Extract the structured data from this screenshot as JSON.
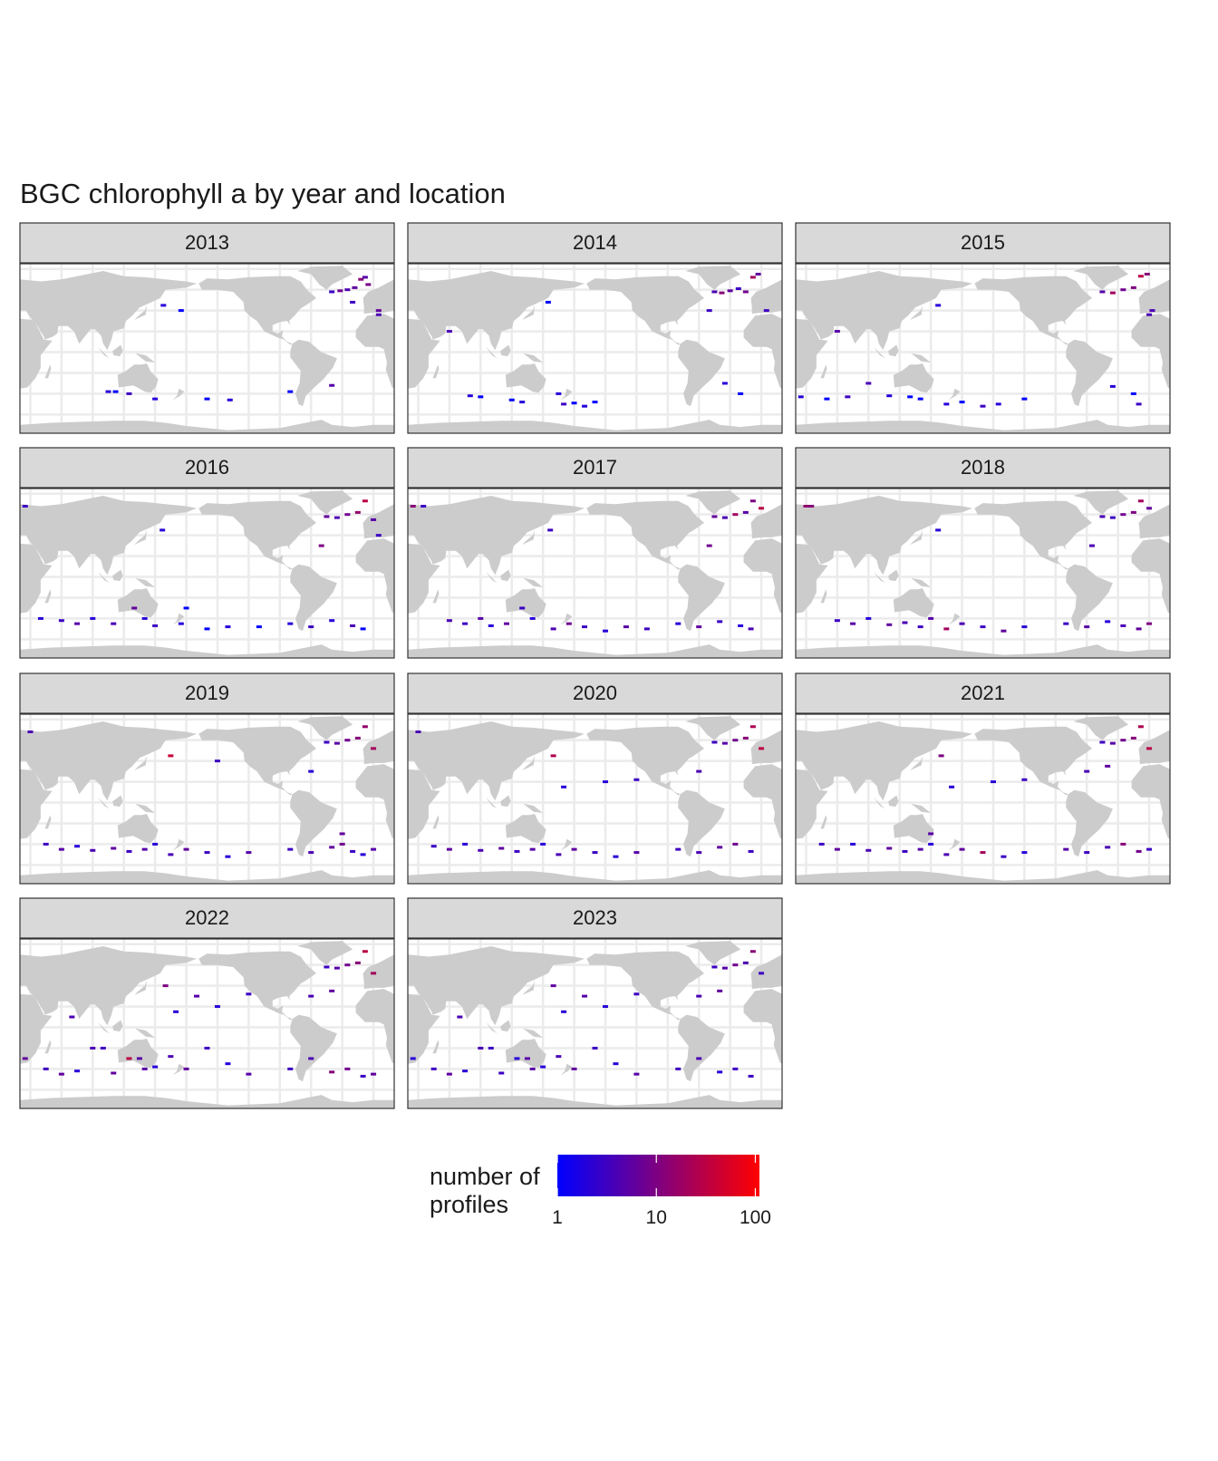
{
  "chart_data": {
    "type": "map",
    "title": "BGC chlorophyll a by year and location",
    "land_color": "#cccccc",
    "grid": true,
    "facets": [
      {
        "label": "2013",
        "lon": [
          -40,
          -32,
          -25,
          -18,
          -12,
          -8,
          -20,
          5,
          5,
          105,
          112,
          125,
          150,
          200,
          222,
          -40,
          -80,
          158,
          175,
          -5
        ],
        "lat": [
          58,
          59,
          60,
          62,
          70,
          72,
          48,
          40,
          36,
          -38,
          -38,
          -40,
          -45,
          -45,
          -46,
          -32,
          -38,
          45,
          40,
          65
        ],
        "values": [
          3,
          8,
          4,
          6,
          12,
          5,
          3,
          6,
          4,
          2,
          1,
          3,
          2,
          1,
          2,
          5,
          1,
          2,
          1,
          9
        ]
      },
      {
        "label": "2014",
        "lon": [
          -45,
          -38,
          -30,
          -22,
          -15,
          -8,
          -3,
          5,
          80,
          90,
          120,
          130,
          165,
          170,
          180,
          190,
          200,
          -35,
          -20,
          -50,
          60,
          155
        ],
        "lat": [
          58,
          57,
          59,
          61,
          58,
          72,
          75,
          40,
          -42,
          -43,
          -46,
          -48,
          -40,
          -50,
          -49,
          -52,
          -48,
          -30,
          -40,
          40,
          20,
          48
        ],
        "values": [
          4,
          12,
          6,
          3,
          8,
          20,
          6,
          3,
          2,
          1,
          1,
          2,
          2,
          3,
          1,
          2,
          1,
          2,
          1,
          3,
          4,
          1
        ]
      },
      {
        "label": "2015",
        "lon": [
          -45,
          -35,
          -25,
          -15,
          -8,
          -2,
          3,
          25,
          50,
          70,
          90,
          110,
          130,
          140,
          165,
          180,
          200,
          215,
          240,
          -35,
          -15,
          -10,
          157,
          60,
          0
        ],
        "lat": [
          58,
          57,
          60,
          62,
          73,
          75,
          40,
          -43,
          -45,
          -43,
          -30,
          -42,
          -43,
          -45,
          -50,
          -48,
          -52,
          -50,
          -45,
          -33,
          -40,
          -50,
          45,
          20,
          36
        ],
        "values": [
          5,
          20,
          8,
          10,
          30,
          12,
          4,
          2,
          1,
          3,
          4,
          2,
          1,
          1,
          2,
          1,
          3,
          2,
          1,
          2,
          1,
          3,
          2,
          5,
          4
        ]
      },
      {
        "label": "2016",
        "lon": [
          -45,
          -35,
          -25,
          -15,
          -8,
          0,
          25,
          40,
          60,
          75,
          90,
          110,
          130,
          140,
          150,
          175,
          200,
          220,
          250,
          -80,
          -60,
          -40,
          -20,
          -10,
          157,
          180,
          5,
          -50
        ],
        "lat": [
          58,
          57,
          60,
          62,
          73,
          55,
          68,
          -40,
          -42,
          -45,
          -40,
          -45,
          -30,
          -40,
          -47,
          -45,
          -50,
          -48,
          -48,
          -45,
          -48,
          -42,
          -47,
          -50,
          45,
          -30,
          40,
          30
        ],
        "values": [
          6,
          4,
          8,
          15,
          30,
          5,
          3,
          2,
          3,
          5,
          2,
          4,
          6,
          2,
          3,
          2,
          1,
          2,
          1,
          2,
          3,
          2,
          4,
          1,
          2,
          1,
          3,
          10
        ]
      },
      {
        "label": "2017",
        "lon": [
          -45,
          -35,
          -25,
          -15,
          -8,
          0,
          35,
          60,
          75,
          90,
          100,
          115,
          130,
          140,
          160,
          175,
          190,
          210,
          230,
          250,
          -80,
          -60,
          -40,
          -20,
          -10,
          157,
          25,
          -50
        ],
        "lat": [
          58,
          57,
          60,
          62,
          73,
          66,
          68,
          -42,
          -45,
          -40,
          -47,
          -45,
          -30,
          -40,
          -50,
          -45,
          -48,
          -52,
          -48,
          -50,
          -45,
          -48,
          -43,
          -47,
          -50,
          45,
          68,
          30
        ],
        "values": [
          6,
          4,
          20,
          5,
          10,
          30,
          3,
          4,
          3,
          5,
          2,
          6,
          3,
          2,
          4,
          8,
          3,
          2,
          5,
          3,
          2,
          6,
          3,
          2,
          4,
          3,
          12,
          8
        ]
      },
      {
        "label": "2018",
        "lon": [
          -45,
          -35,
          -25,
          -15,
          -8,
          0,
          30,
          60,
          75,
          90,
          110,
          125,
          140,
          150,
          165,
          180,
          200,
          220,
          240,
          -80,
          -60,
          -40,
          -25,
          -10,
          0,
          157,
          35,
          -55
        ],
        "lat": [
          58,
          57,
          60,
          62,
          73,
          66,
          68,
          -42,
          -45,
          -40,
          -46,
          -44,
          -48,
          -40,
          -50,
          -45,
          -48,
          -52,
          -48,
          -45,
          -48,
          -43,
          -47,
          -50,
          -45,
          45,
          68,
          30
        ],
        "values": [
          4,
          3,
          8,
          10,
          20,
          6,
          15,
          3,
          5,
          2,
          6,
          4,
          3,
          5,
          20,
          4,
          3,
          6,
          2,
          3,
          5,
          2,
          4,
          6,
          10,
          2,
          12,
          4
        ]
      },
      {
        "label": "2019",
        "lon": [
          -45,
          -35,
          -25,
          -15,
          -8,
          0,
          30,
          45,
          60,
          75,
          90,
          110,
          125,
          140,
          150,
          165,
          180,
          200,
          220,
          240,
          -80,
          -60,
          -40,
          -30,
          -20,
          -10,
          0,
          165,
          -150,
          -60,
          -30
        ],
        "lat": [
          58,
          57,
          60,
          62,
          73,
          52,
          68,
          -40,
          -45,
          -42,
          -46,
          -44,
          -47,
          -45,
          -40,
          -50,
          -45,
          -48,
          -52,
          -48,
          -45,
          -48,
          -43,
          -40,
          -47,
          -50,
          -45,
          45,
          40,
          30,
          -30
        ],
        "values": [
          3,
          5,
          8,
          12,
          15,
          20,
          4,
          3,
          5,
          2,
          4,
          6,
          3,
          5,
          2,
          4,
          6,
          3,
          2,
          5,
          3,
          4,
          6,
          8,
          3,
          2,
          5,
          40,
          3,
          2,
          6
        ]
      },
      {
        "label": "2020",
        "lon": [
          -45,
          -35,
          -25,
          -15,
          -8,
          0,
          30,
          45,
          60,
          75,
          90,
          110,
          125,
          140,
          150,
          165,
          180,
          200,
          220,
          240,
          -80,
          -60,
          -40,
          -25,
          -10,
          160,
          -150,
          -120,
          -60,
          170
        ],
        "lat": [
          58,
          57,
          60,
          62,
          73,
          52,
          68,
          -42,
          -45,
          -40,
          -46,
          -44,
          -47,
          -45,
          -40,
          -50,
          -45,
          -48,
          -52,
          -48,
          -45,
          -48,
          -43,
          -40,
          -47,
          45,
          20,
          22,
          30,
          15
        ],
        "values": [
          3,
          5,
          8,
          12,
          25,
          30,
          4,
          3,
          6,
          2,
          4,
          6,
          3,
          5,
          2,
          4,
          6,
          3,
          2,
          5,
          3,
          4,
          6,
          8,
          3,
          25,
          2,
          3,
          4,
          2
        ]
      },
      {
        "label": "2021",
        "lon": [
          -45,
          -35,
          -25,
          -15,
          -8,
          0,
          45,
          60,
          75,
          90,
          110,
          125,
          140,
          150,
          165,
          180,
          200,
          220,
          240,
          -80,
          -60,
          -40,
          -25,
          -10,
          0,
          160,
          -150,
          -120,
          -60,
          -40,
          170,
          150
        ],
        "lat": [
          58,
          57,
          60,
          62,
          73,
          52,
          -40,
          -45,
          -40,
          -46,
          -44,
          -47,
          -45,
          -40,
          -50,
          -45,
          -48,
          -52,
          -48,
          -45,
          -48,
          -43,
          -40,
          -47,
          -45,
          45,
          20,
          22,
          30,
          35,
          15,
          -30
        ],
        "values": [
          3,
          5,
          8,
          12,
          25,
          30,
          3,
          6,
          2,
          4,
          6,
          3,
          5,
          2,
          4,
          6,
          20,
          3,
          2,
          5,
          3,
          4,
          12,
          8,
          3,
          10,
          2,
          3,
          4,
          6,
          2,
          5
        ]
      },
      {
        "label": "2022",
        "lon": [
          -45,
          -35,
          -25,
          -15,
          -8,
          0,
          25,
          45,
          60,
          75,
          90,
          110,
          125,
          140,
          150,
          165,
          180,
          200,
          220,
          240,
          -80,
          -60,
          -40,
          -25,
          -10,
          0,
          160,
          -170,
          -150,
          -120,
          -60,
          -40,
          170,
          135,
          100,
          70
        ],
        "lat": [
          58,
          57,
          60,
          62,
          73,
          52,
          -30,
          -40,
          -45,
          -42,
          -20,
          -44,
          -30,
          -40,
          -38,
          -28,
          -40,
          -20,
          -35,
          -45,
          -40,
          -30,
          -43,
          -40,
          -47,
          -45,
          40,
          30,
          20,
          32,
          30,
          35,
          15,
          -30,
          -20,
          10
        ],
        "values": [
          3,
          5,
          8,
          12,
          30,
          20,
          6,
          3,
          6,
          2,
          4,
          6,
          30,
          5,
          2,
          4,
          6,
          3,
          2,
          5,
          3,
          4,
          12,
          8,
          3,
          6,
          10,
          5,
          2,
          3,
          4,
          6,
          2,
          5,
          3,
          4
        ]
      },
      {
        "label": "2023",
        "lon": [
          -45,
          -35,
          -25,
          -15,
          -8,
          0,
          25,
          45,
          60,
          75,
          90,
          110,
          125,
          140,
          150,
          165,
          180,
          200,
          220,
          240,
          -80,
          -60,
          -40,
          -25,
          -10,
          160,
          -170,
          -150,
          -120,
          -60,
          -40,
          170,
          135,
          100,
          70
        ],
        "lat": [
          58,
          57,
          60,
          62,
          73,
          52,
          -30,
          -40,
          -45,
          -42,
          -20,
          -44,
          -30,
          -40,
          -38,
          -28,
          -40,
          -20,
          -35,
          -45,
          -40,
          -30,
          -43,
          -40,
          -47,
          40,
          30,
          20,
          32,
          30,
          35,
          15,
          -30,
          -20,
          10
        ],
        "values": [
          3,
          5,
          8,
          4,
          12,
          3,
          2,
          3,
          6,
          2,
          4,
          3,
          2,
          5,
          2,
          4,
          6,
          3,
          2,
          5,
          3,
          4,
          2,
          3,
          3,
          6,
          5,
          2,
          3,
          4,
          6,
          2,
          5,
          3,
          4
        ]
      }
    ],
    "colorbar": {
      "title": "number of\nprofiles",
      "log": true,
      "lim": [
        1,
        110
      ],
      "ticks": [
        1,
        10,
        100
      ],
      "colors": [
        "#0000ff",
        "#ff0000"
      ]
    }
  }
}
